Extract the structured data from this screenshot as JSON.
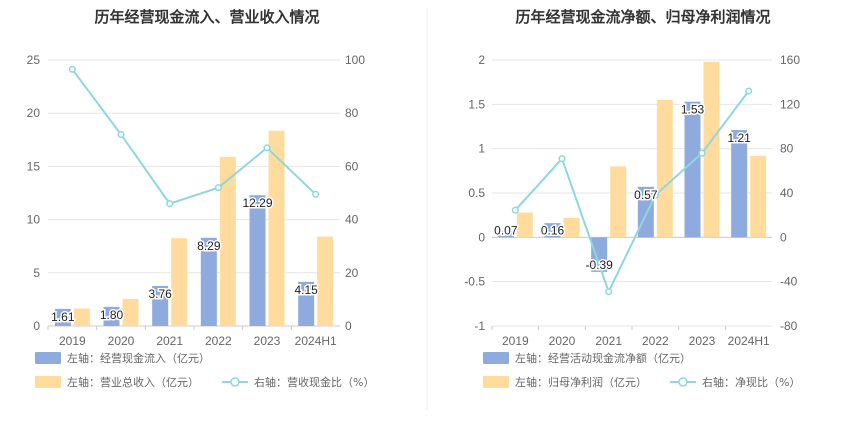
{
  "chart_data": [
    {
      "type": "bar",
      "title": "历年经营现金流入、营业收入情况",
      "categories": [
        "2019",
        "2020",
        "2021",
        "2022",
        "2023",
        "2024H1"
      ],
      "left_axis": {
        "ylim": [
          0,
          25
        ],
        "ticks": [
          "0",
          "5",
          "10",
          "15",
          "20",
          "25"
        ]
      },
      "right_axis": {
        "ylim": [
          0,
          100
        ],
        "ticks": [
          "0",
          "20",
          "40",
          "60",
          "80",
          "100"
        ]
      },
      "series": [
        {
          "name": "左轴：经营现金流入（亿元）",
          "kind": "bar",
          "axis": "left",
          "color": "#8FAADC",
          "values": [
            1.61,
            1.8,
            3.76,
            8.29,
            12.29,
            4.15
          ],
          "labels": [
            "1.61",
            "1.80",
            "3.76",
            "8.29",
            "12.29",
            "4.15"
          ]
        },
        {
          "name": "左轴：营业总收入（亿元）",
          "kind": "bar",
          "axis": "left",
          "color": "#FFDC9E",
          "values": [
            1.65,
            2.55,
            8.25,
            15.9,
            18.35,
            8.4
          ]
        },
        {
          "name": "右轴：营收现金比（%）",
          "kind": "line",
          "axis": "right",
          "color": "#8ED8DD",
          "values": [
            96.5,
            72,
            46,
            52,
            67,
            49.5
          ]
        }
      ]
    },
    {
      "type": "bar",
      "title": "历年经营现金流净额、归母净利润情况",
      "categories": [
        "2019",
        "2020",
        "2021",
        "2022",
        "2023",
        "2024H1"
      ],
      "left_axis": {
        "ylim": [
          -1,
          2
        ],
        "ticks": [
          "-1",
          "-0.5",
          "0",
          "0.5",
          "1",
          "1.5",
          "2"
        ]
      },
      "right_axis": {
        "ylim": [
          -80,
          160
        ],
        "ticks": [
          "-80",
          "-40",
          "0",
          "40",
          "80",
          "120",
          "160"
        ]
      },
      "series": [
        {
          "name": "左轴：经营活动现金流净额（亿元）",
          "kind": "bar",
          "axis": "left",
          "color": "#8FAADC",
          "values": [
            0.07,
            0.16,
            -0.39,
            0.57,
            1.53,
            1.21
          ],
          "labels": [
            "0.07",
            "0.16",
            "-0.39",
            "0.57",
            "1.53",
            "1.21"
          ]
        },
        {
          "name": "左轴：归母净利润（亿元）",
          "kind": "bar",
          "axis": "left",
          "color": "#FFDC9E",
          "values": [
            0.28,
            0.22,
            0.8,
            1.55,
            1.98,
            0.92
          ]
        },
        {
          "name": "右轴：净现比（%）",
          "kind": "line",
          "axis": "right",
          "color": "#8ED8DD",
          "values": [
            24.5,
            71,
            -49,
            38,
            76,
            132
          ]
        }
      ]
    }
  ]
}
